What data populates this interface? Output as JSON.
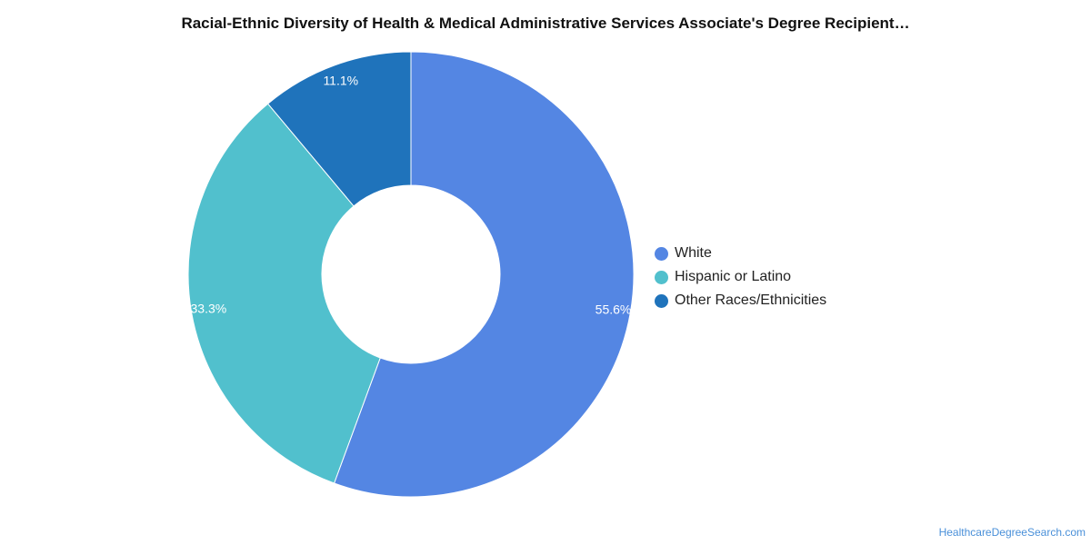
{
  "title": "Racial-Ethnic Diversity of Health & Medical Administrative Services Associate's Degree Recipient…",
  "chart_data": {
    "type": "pie",
    "style": "donut",
    "title": "Racial-Ethnic Diversity of Health & Medical Administrative Services Associate's Degree Recipient…",
    "legend_position": "right",
    "series": [
      {
        "name": "White",
        "value": 55.6,
        "label": "55.6%",
        "color": "#5486e3"
      },
      {
        "name": "Hispanic or Latino",
        "value": 33.3,
        "label": "33.3%",
        "color": "#51c0cd"
      },
      {
        "name": "Other Races/Ethnicities",
        "value": 11.1,
        "label": "11.1%",
        "color": "#1f73bb"
      }
    ]
  },
  "source": "HealthcareDegreeSearch.com"
}
